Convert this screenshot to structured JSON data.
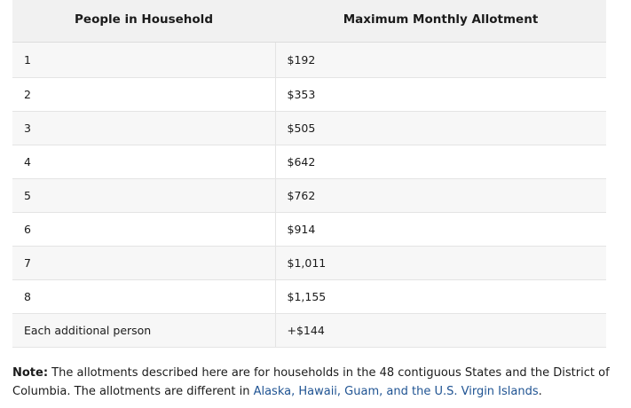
{
  "table": {
    "headers": [
      "People in Household",
      "Maximum Monthly Allotment"
    ],
    "rows": [
      [
        "1",
        "$192"
      ],
      [
        "2",
        "$353"
      ],
      [
        "3",
        "$505"
      ],
      [
        "4",
        "$642"
      ],
      [
        "5",
        "$762"
      ],
      [
        "6",
        "$914"
      ],
      [
        "7",
        "$1,011"
      ],
      [
        "8",
        "$1,155"
      ],
      [
        "Each additional person",
        "+$144"
      ]
    ]
  },
  "note": {
    "label": "Note:",
    "text": " The allotments described here are for households in the 48 contiguous States and the District of Columbia. The allotments are different in ",
    "link_text": "Alaska, Hawaii, Guam, and the U.S. Virgin Islands",
    "end": "."
  },
  "colors": {
    "header_bg": "#f1f1f1",
    "stripe_bg": "#f7f7f7",
    "link": "#205493"
  }
}
